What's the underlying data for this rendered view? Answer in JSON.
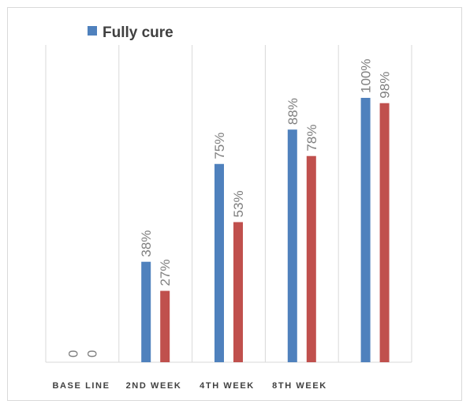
{
  "chart_data": {
    "type": "bar",
    "categories": [
      "BASE LINE",
      "2ND WEEK",
      "4TH WEEK",
      "8TH WEEK",
      ""
    ],
    "series": [
      {
        "name": "Fully cure",
        "color": "#4f81bd",
        "values": [
          0,
          38,
          75,
          88,
          100
        ],
        "labels": [
          "0",
          "38%",
          "75%",
          "88%",
          "100%"
        ]
      },
      {
        "color": "#c0504d",
        "values": [
          0,
          27,
          53,
          78,
          98
        ],
        "labels": [
          "0",
          "27%",
          "53%",
          "78%",
          "98%"
        ]
      }
    ],
    "ylim": [
      0,
      120
    ],
    "grid": "vertical",
    "legend": "top-left",
    "title": "",
    "xlabel": "",
    "ylabel": ""
  }
}
